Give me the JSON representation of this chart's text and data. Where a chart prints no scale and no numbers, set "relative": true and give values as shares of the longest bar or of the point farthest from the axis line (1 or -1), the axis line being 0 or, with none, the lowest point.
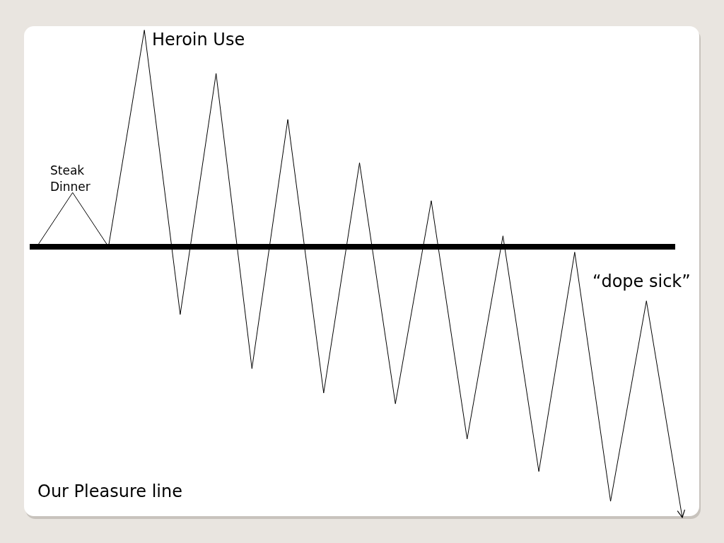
{
  "chart_data": {
    "type": "line",
    "relative": true,
    "categories": [
      null,
      null,
      null,
      null,
      null,
      null,
      null,
      null,
      null,
      null,
      null,
      null,
      null,
      null,
      null,
      null,
      null,
      null,
      null
    ],
    "series": [
      {
        "color": "#000000",
        "values": [
          0,
          0.2,
          0,
          0.8,
          -0.25,
          0.64,
          -0.45,
          0.47,
          -0.54,
          0.31,
          -0.58,
          0.17,
          -0.71,
          0.04,
          -0.83,
          -0.02,
          -0.94,
          -0.2,
          -1
        ]
      }
    ],
    "ref_lines": [
      {
        "axis": "y",
        "value": 0,
        "label": "Our Pleasure line",
        "color": "#000000"
      }
    ],
    "annotations": [
      "Steak\nDinner",
      "Heroin Use",
      "“dope sick”"
    ]
  }
}
